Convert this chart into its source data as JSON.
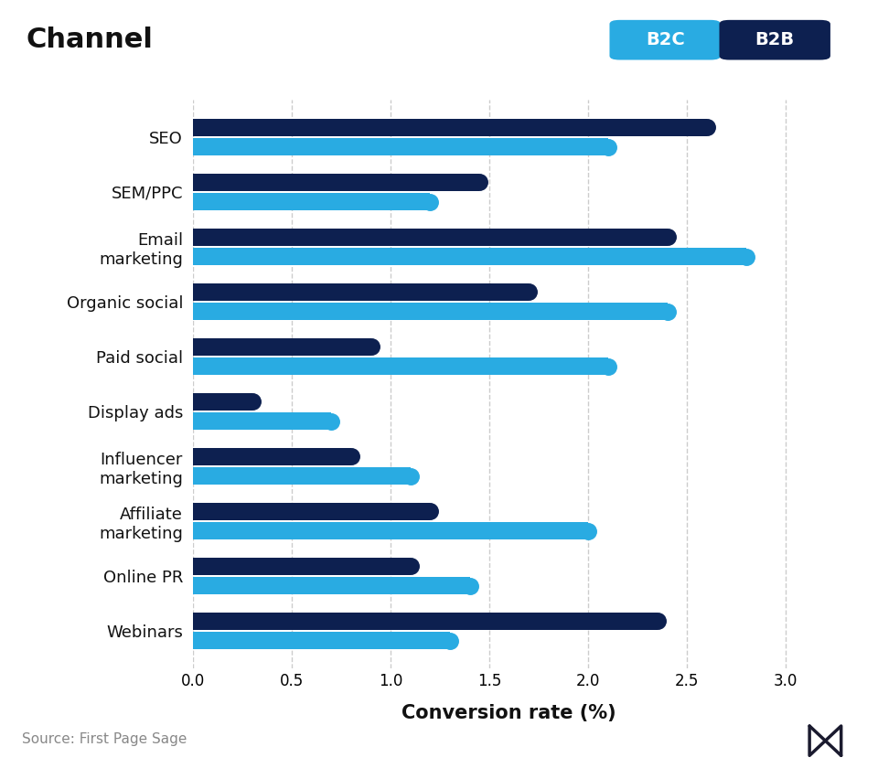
{
  "title": "Channel",
  "xlabel": "Conversion rate (%)",
  "source": "Source: First Page Sage",
  "categories": [
    "SEO",
    "SEM/PPC",
    "Email\nmarketing",
    "Organic social",
    "Paid social",
    "Display ads",
    "Influencer\nmarketing",
    "Affiliate\nmarketing",
    "Online PR",
    "Webinars"
  ],
  "b2c_values": [
    2.1,
    1.2,
    2.8,
    2.4,
    2.1,
    0.7,
    1.1,
    2.0,
    1.4,
    1.3
  ],
  "b2b_values": [
    2.6,
    1.45,
    2.4,
    1.7,
    0.9,
    0.3,
    0.8,
    1.2,
    1.1,
    2.35
  ],
  "b2c_color": "#29ABE2",
  "b2b_color": "#0D2050",
  "background_color": "#FFFFFF",
  "footer_bg": "#EEEEF4",
  "title_color": "#111111",
  "accent_color": "#E8174B",
  "xlim": [
    0,
    3.2
  ],
  "xticks": [
    0.0,
    0.5,
    1.0,
    1.5,
    2.0,
    2.5,
    3.0
  ],
  "bar_height": 0.32,
  "bar_gap": 0.04,
  "title_fontsize": 22,
  "label_fontsize": 13,
  "tick_fontsize": 12,
  "source_fontsize": 11
}
